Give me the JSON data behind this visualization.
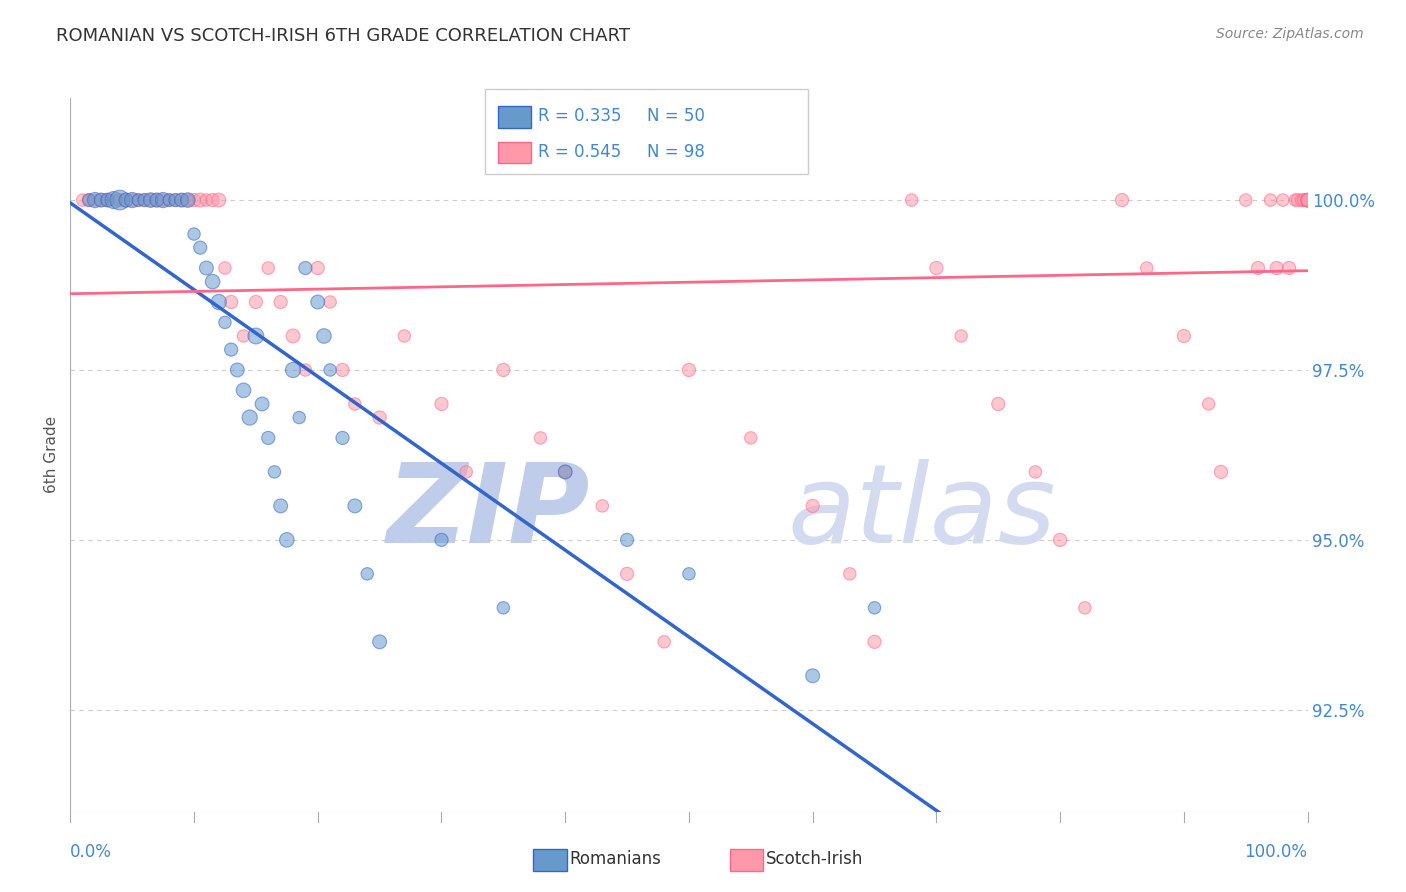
{
  "title": "ROMANIAN VS SCOTCH-IRISH 6TH GRADE CORRELATION CHART",
  "source": "Source: ZipAtlas.com",
  "ylabel": "6th Grade",
  "yticks": [
    92.5,
    95.0,
    97.5,
    100.0
  ],
  "ytick_labels": [
    "92.5%",
    "95.0%",
    "97.5%",
    "100.0%"
  ],
  "xrange": [
    0.0,
    100.0
  ],
  "yrange": [
    91.0,
    101.5
  ],
  "blue_color": "#6699CC",
  "pink_color": "#FF99AA",
  "blue_line_color": "#3366CC",
  "pink_line_color": "#FF6688",
  "blue_label": "Romanians",
  "pink_label": "Scotch-Irish",
  "blue_R": "R = 0.335",
  "blue_N": "N = 50",
  "pink_R": "R = 0.545",
  "pink_N": "N = 98",
  "blue_scatter_x": [
    1.5,
    2.0,
    2.5,
    3.0,
    3.5,
    4.0,
    4.5,
    5.0,
    5.5,
    6.0,
    6.5,
    7.0,
    7.5,
    8.0,
    8.5,
    9.0,
    9.5,
    10.0,
    10.5,
    11.0,
    11.5,
    12.0,
    12.5,
    13.0,
    13.5,
    14.0,
    14.5,
    15.0,
    15.5,
    16.0,
    16.5,
    17.0,
    17.5,
    18.0,
    18.5,
    19.0,
    20.0,
    20.5,
    21.0,
    22.0,
    23.0,
    24.0,
    25.0,
    30.0,
    35.0,
    40.0,
    45.0,
    50.0,
    60.0,
    65.0
  ],
  "blue_scatter_y": [
    100.0,
    100.0,
    100.0,
    100.0,
    100.0,
    100.0,
    100.0,
    100.0,
    100.0,
    100.0,
    100.0,
    100.0,
    100.0,
    100.0,
    100.0,
    100.0,
    100.0,
    99.5,
    99.3,
    99.0,
    98.8,
    98.5,
    98.2,
    97.8,
    97.5,
    97.2,
    96.8,
    98.0,
    97.0,
    96.5,
    96.0,
    95.5,
    95.0,
    97.5,
    96.8,
    99.0,
    98.5,
    98.0,
    97.5,
    96.5,
    95.5,
    94.5,
    93.5,
    95.0,
    94.0,
    96.0,
    95.0,
    94.5,
    93.0,
    94.0
  ],
  "blue_scatter_size": [
    80,
    120,
    100,
    90,
    150,
    200,
    100,
    120,
    80,
    90,
    110,
    100,
    120,
    80,
    90,
    100,
    110,
    80,
    90,
    100,
    110,
    120,
    80,
    90,
    100,
    110,
    120,
    130,
    100,
    90,
    80,
    100,
    110,
    120,
    80,
    90,
    100,
    110,
    80,
    90,
    100,
    80,
    100,
    90,
    80,
    100,
    90,
    80,
    100,
    80
  ],
  "pink_scatter_x": [
    1.0,
    1.5,
    2.0,
    2.5,
    3.0,
    3.5,
    4.0,
    4.5,
    5.0,
    5.5,
    6.0,
    6.5,
    7.0,
    7.5,
    8.0,
    8.5,
    9.0,
    9.5,
    10.0,
    10.5,
    11.0,
    11.5,
    12.0,
    12.5,
    13.0,
    14.0,
    15.0,
    16.0,
    17.0,
    18.0,
    19.0,
    20.0,
    21.0,
    22.0,
    23.0,
    25.0,
    27.0,
    30.0,
    32.0,
    35.0,
    38.0,
    40.0,
    43.0,
    45.0,
    48.0,
    50.0,
    55.0,
    60.0,
    63.0,
    65.0,
    68.0,
    70.0,
    72.0,
    75.0,
    78.0,
    80.0,
    82.0,
    85.0,
    87.0,
    90.0,
    92.0,
    93.0,
    95.0,
    96.0,
    97.0,
    97.5,
    98.0,
    98.5,
    99.0,
    99.2,
    99.5,
    99.7,
    100.0,
    100.0,
    100.0,
    100.0,
    100.0,
    100.0,
    100.0,
    100.0,
    100.0,
    100.0,
    100.0,
    100.0,
    100.0,
    100.0,
    100.0,
    100.0,
    100.0,
    100.0,
    100.0,
    100.0,
    100.0,
    100.0,
    100.0,
    100.0,
    100.0,
    100.0
  ],
  "pink_scatter_y": [
    100.0,
    100.0,
    100.0,
    100.0,
    100.0,
    100.0,
    100.0,
    100.0,
    100.0,
    100.0,
    100.0,
    100.0,
    100.0,
    100.0,
    100.0,
    100.0,
    100.0,
    100.0,
    100.0,
    100.0,
    100.0,
    100.0,
    100.0,
    99.0,
    98.5,
    98.0,
    98.5,
    99.0,
    98.5,
    98.0,
    97.5,
    99.0,
    98.5,
    97.5,
    97.0,
    96.8,
    98.0,
    97.0,
    96.0,
    97.5,
    96.5,
    96.0,
    95.5,
    94.5,
    93.5,
    97.5,
    96.5,
    95.5,
    94.5,
    93.5,
    100.0,
    99.0,
    98.0,
    97.0,
    96.0,
    95.0,
    94.0,
    100.0,
    99.0,
    98.0,
    97.0,
    96.0,
    100.0,
    99.0,
    100.0,
    99.0,
    100.0,
    99.0,
    100.0,
    100.0,
    100.0,
    100.0,
    100.0,
    100.0,
    100.0,
    100.0,
    100.0,
    100.0,
    100.0,
    100.0,
    100.0,
    100.0,
    100.0,
    100.0,
    100.0,
    100.0,
    100.0,
    100.0,
    100.0,
    100.0,
    100.0,
    100.0,
    100.0,
    100.0,
    100.0,
    100.0,
    100.0,
    100.0
  ],
  "pink_scatter_size": [
    80,
    90,
    80,
    90,
    100,
    80,
    90,
    100,
    80,
    90,
    80,
    90,
    100,
    80,
    90,
    80,
    90,
    80,
    90,
    100,
    80,
    90,
    100,
    80,
    90,
    80,
    90,
    80,
    90,
    100,
    80,
    90,
    80,
    90,
    80,
    90,
    80,
    90,
    80,
    90,
    80,
    90,
    80,
    90,
    80,
    90,
    80,
    90,
    80,
    90,
    80,
    90,
    80,
    90,
    80,
    90,
    80,
    90,
    80,
    90,
    80,
    90,
    80,
    90,
    80,
    90,
    80,
    90,
    80,
    90,
    80,
    90,
    80,
    90,
    80,
    90,
    80,
    90,
    80,
    90,
    80,
    90,
    80,
    90,
    80,
    90,
    80,
    90,
    80,
    90,
    80,
    90,
    80,
    90,
    80,
    90,
    80,
    90
  ],
  "watermark_zip": "ZIP",
  "watermark_atlas": "atlas",
  "watermark_color": "#D8DCF0",
  "background_color": "#FFFFFF",
  "grid_color": "#CCCCCC",
  "axis_label_color": "#4488CC",
  "title_color": "#333333"
}
